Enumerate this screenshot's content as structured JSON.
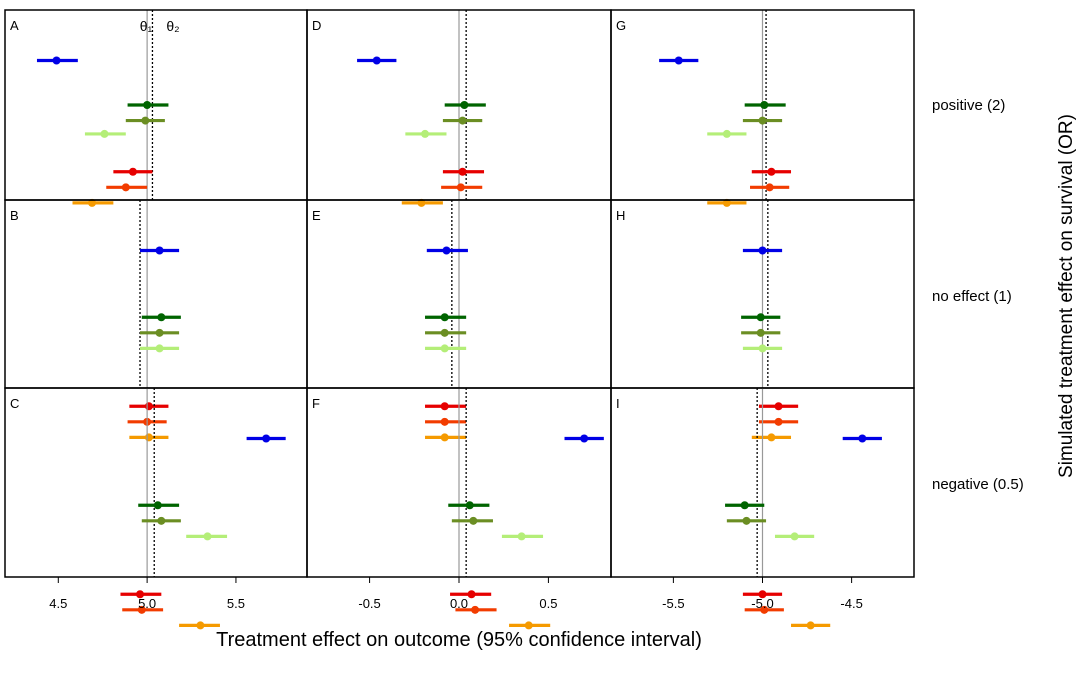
{
  "chart_data": {
    "type": "forest-plot",
    "xlabel": "Treatment effect on outcome (95% confidence interval)",
    "ylabel": "Simulated treatment effect on survival (OR)",
    "theta_labels": {
      "theta1": "θ₁",
      "theta2": "θ₂"
    },
    "rows": [
      "positive (2)",
      "no effect (1)",
      "negative (0.5)"
    ],
    "columns": [
      {
        "xlim": [
          4.2,
          5.9
        ],
        "ticks": [
          4.5,
          5.0,
          5.5
        ],
        "tick_labels": [
          "4.5",
          "5.0",
          "5.5"
        ]
      },
      {
        "xlim": [
          -0.85,
          0.85
        ],
        "ticks": [
          -0.5,
          0.0,
          0.5
        ],
        "tick_labels": [
          "-0.5",
          "0.0",
          "0.5"
        ]
      },
      {
        "xlim": [
          -5.85,
          -4.15
        ],
        "ticks": [
          -5.5,
          -5.0,
          -4.5
        ],
        "tick_labels": [
          "-5.5",
          "-5.0",
          "-4.5"
        ]
      }
    ],
    "series_colors": [
      "#0000e6",
      "#006400",
      "#6b8e23",
      "#b4ee78",
      "#e60000",
      "#f23c00",
      "#f59a00"
    ],
    "panels": [
      {
        "label": "A",
        "row": 0,
        "col": 0,
        "theta1": 5.0,
        "theta2": 5.03,
        "points": [
          {
            "y": 1,
            "est": 4.49,
            "lo": 4.38,
            "hi": 4.61
          },
          {
            "y": 2,
            "est": 5.0,
            "lo": 4.89,
            "hi": 5.12
          },
          {
            "y": 2.35,
            "est": 4.99,
            "lo": 4.88,
            "hi": 5.1
          },
          {
            "y": 2.65,
            "est": 4.76,
            "lo": 4.65,
            "hi": 4.88
          },
          {
            "y": 3.5,
            "est": 4.92,
            "lo": 4.81,
            "hi": 5.03
          },
          {
            "y": 3.85,
            "est": 4.88,
            "lo": 4.77,
            "hi": 5.0
          },
          {
            "y": 4.2,
            "est": 4.69,
            "lo": 4.58,
            "hi": 4.81
          }
        ]
      },
      {
        "label": "B",
        "row": 1,
        "col": 0,
        "theta1": 5.0,
        "theta2": 4.96,
        "points": [
          {
            "y": 1,
            "est": 5.07,
            "lo": 4.96,
            "hi": 5.18
          },
          {
            "y": 2.5,
            "est": 5.08,
            "lo": 4.97,
            "hi": 5.19
          },
          {
            "y": 2.85,
            "est": 5.07,
            "lo": 4.96,
            "hi": 5.18
          },
          {
            "y": 3.2,
            "est": 5.07,
            "lo": 4.96,
            "hi": 5.18
          },
          {
            "y": 4.5,
            "est": 5.01,
            "lo": 4.9,
            "hi": 5.12
          },
          {
            "y": 4.85,
            "est": 5.0,
            "lo": 4.89,
            "hi": 5.11
          },
          {
            "y": 5.2,
            "est": 5.01,
            "lo": 4.9,
            "hi": 5.12
          }
        ]
      },
      {
        "label": "C",
        "row": 2,
        "col": 0,
        "theta1": 5.0,
        "theta2": 5.04,
        "points": [
          {
            "y": 1,
            "est": 5.67,
            "lo": 5.56,
            "hi": 5.78
          },
          {
            "y": 2.5,
            "est": 5.06,
            "lo": 4.95,
            "hi": 5.18
          },
          {
            "y": 2.85,
            "est": 5.08,
            "lo": 4.97,
            "hi": 5.19
          },
          {
            "y": 3.2,
            "est": 5.34,
            "lo": 5.22,
            "hi": 5.45
          },
          {
            "y": 4.5,
            "est": 4.96,
            "lo": 4.85,
            "hi": 5.08
          },
          {
            "y": 4.85,
            "est": 4.97,
            "lo": 4.86,
            "hi": 5.09
          },
          {
            "y": 5.2,
            "est": 5.3,
            "lo": 5.18,
            "hi": 5.41
          }
        ]
      },
      {
        "label": "D",
        "row": 0,
        "col": 1,
        "theta1": 0.0,
        "theta2": 0.04,
        "points": [
          {
            "y": 1,
            "est": -0.46,
            "lo": -0.57,
            "hi": -0.35
          },
          {
            "y": 2,
            "est": 0.03,
            "lo": -0.08,
            "hi": 0.15
          },
          {
            "y": 2.35,
            "est": 0.02,
            "lo": -0.09,
            "hi": 0.13
          },
          {
            "y": 2.65,
            "est": -0.19,
            "lo": -0.3,
            "hi": -0.07
          },
          {
            "y": 3.5,
            "est": 0.02,
            "lo": -0.09,
            "hi": 0.14
          },
          {
            "y": 3.85,
            "est": 0.01,
            "lo": -0.1,
            "hi": 0.13
          },
          {
            "y": 4.2,
            "est": -0.21,
            "lo": -0.32,
            "hi": -0.09
          }
        ]
      },
      {
        "label": "E",
        "row": 1,
        "col": 1,
        "theta1": 0.0,
        "theta2": -0.04,
        "points": [
          {
            "y": 1,
            "est": -0.07,
            "lo": -0.18,
            "hi": 0.05
          },
          {
            "y": 2.5,
            "est": -0.08,
            "lo": -0.19,
            "hi": 0.04
          },
          {
            "y": 2.85,
            "est": -0.08,
            "lo": -0.19,
            "hi": 0.04
          },
          {
            "y": 3.2,
            "est": -0.08,
            "lo": -0.19,
            "hi": 0.04
          },
          {
            "y": 4.5,
            "est": -0.08,
            "lo": -0.19,
            "hi": 0.04
          },
          {
            "y": 4.85,
            "est": -0.08,
            "lo": -0.19,
            "hi": 0.04
          },
          {
            "y": 5.2,
            "est": -0.08,
            "lo": -0.19,
            "hi": 0.04
          }
        ]
      },
      {
        "label": "F",
        "row": 2,
        "col": 1,
        "theta1": 0.0,
        "theta2": 0.04,
        "points": [
          {
            "y": 1,
            "est": 0.7,
            "lo": 0.59,
            "hi": 0.81
          },
          {
            "y": 2.5,
            "est": 0.06,
            "lo": -0.06,
            "hi": 0.17
          },
          {
            "y": 2.85,
            "est": 0.08,
            "lo": -0.04,
            "hi": 0.19
          },
          {
            "y": 3.2,
            "est": 0.35,
            "lo": 0.24,
            "hi": 0.47
          },
          {
            "y": 4.5,
            "est": 0.07,
            "lo": -0.05,
            "hi": 0.18
          },
          {
            "y": 4.85,
            "est": 0.09,
            "lo": -0.02,
            "hi": 0.21
          },
          {
            "y": 5.2,
            "est": 0.39,
            "lo": 0.28,
            "hi": 0.51
          }
        ]
      },
      {
        "label": "G",
        "row": 0,
        "col": 2,
        "theta1": -5.0,
        "theta2": -4.98,
        "points": [
          {
            "y": 1,
            "est": -5.47,
            "lo": -5.58,
            "hi": -5.36
          },
          {
            "y": 2,
            "est": -4.99,
            "lo": -5.1,
            "hi": -4.87
          },
          {
            "y": 2.35,
            "est": -5.0,
            "lo": -5.11,
            "hi": -4.89
          },
          {
            "y": 2.65,
            "est": -5.2,
            "lo": -5.31,
            "hi": -5.09
          },
          {
            "y": 3.5,
            "est": -4.95,
            "lo": -5.06,
            "hi": -4.84
          },
          {
            "y": 3.85,
            "est": -4.96,
            "lo": -5.07,
            "hi": -4.85
          },
          {
            "y": 4.2,
            "est": -5.2,
            "lo": -5.31,
            "hi": -5.09
          }
        ]
      },
      {
        "label": "H",
        "row": 1,
        "col": 2,
        "theta1": -5.0,
        "theta2": -4.97,
        "points": [
          {
            "y": 1,
            "est": -5.0,
            "lo": -5.11,
            "hi": -4.89
          },
          {
            "y": 2.5,
            "est": -5.01,
            "lo": -5.12,
            "hi": -4.9
          },
          {
            "y": 2.85,
            "est": -5.01,
            "lo": -5.12,
            "hi": -4.9
          },
          {
            "y": 3.2,
            "est": -5.0,
            "lo": -5.11,
            "hi": -4.89
          },
          {
            "y": 4.5,
            "est": -4.91,
            "lo": -5.02,
            "hi": -4.8
          },
          {
            "y": 4.85,
            "est": -4.91,
            "lo": -5.02,
            "hi": -4.8
          },
          {
            "y": 5.2,
            "est": -4.95,
            "lo": -5.06,
            "hi": -4.84
          }
        ]
      },
      {
        "label": "I",
        "row": 2,
        "col": 2,
        "theta1": -5.0,
        "theta2": -5.03,
        "points": [
          {
            "y": 1,
            "est": -4.44,
            "lo": -4.55,
            "hi": -4.33
          },
          {
            "y": 2.5,
            "est": -5.1,
            "lo": -5.21,
            "hi": -4.99
          },
          {
            "y": 2.85,
            "est": -5.09,
            "lo": -5.2,
            "hi": -4.98
          },
          {
            "y": 3.2,
            "est": -4.82,
            "lo": -4.93,
            "hi": -4.71
          },
          {
            "y": 4.5,
            "est": -5.0,
            "lo": -5.11,
            "hi": -4.89
          },
          {
            "y": 4.85,
            "est": -4.99,
            "lo": -5.1,
            "hi": -4.88
          },
          {
            "y": 5.2,
            "est": -4.73,
            "lo": -4.84,
            "hi": -4.62
          }
        ]
      }
    ]
  }
}
